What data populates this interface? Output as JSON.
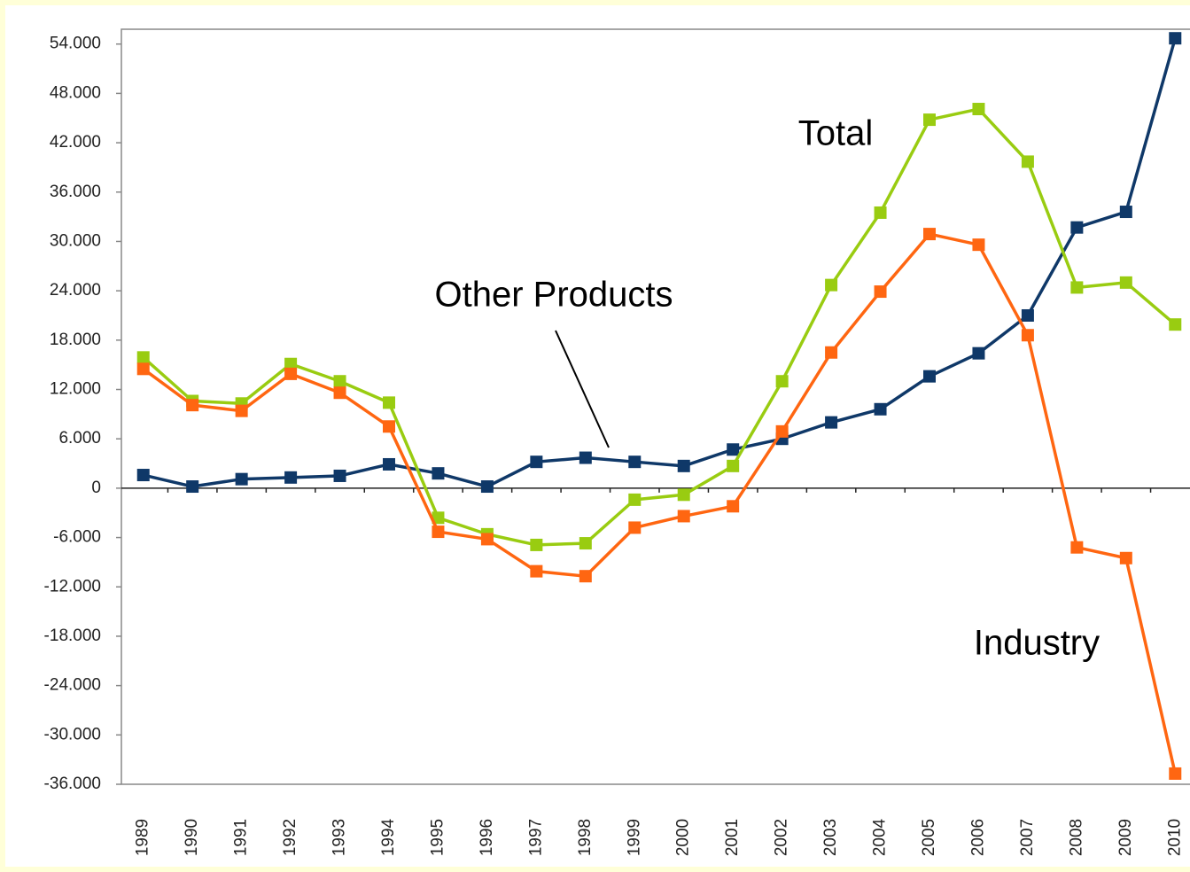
{
  "chart_data": {
    "type": "line",
    "categories": [
      "1989",
      "1990",
      "1991",
      "1992",
      "1993",
      "1994",
      "1995",
      "1996",
      "1997",
      "1998",
      "1999",
      "2000",
      "2001",
      "2002",
      "2003",
      "2004",
      "2005",
      "2006",
      "2007",
      "2008",
      "2009",
      "2010"
    ],
    "series": [
      {
        "name": "Other Products",
        "color": "#0f3868",
        "values": [
          1600,
          200,
          1100,
          1300,
          1500,
          2900,
          1800,
          200,
          3200,
          3700,
          3200,
          2700,
          4700,
          6000,
          8000,
          9600,
          13600,
          16400,
          21000,
          31700,
          33600,
          54700
        ]
      },
      {
        "name": "Total",
        "color": "#99cc11",
        "values": [
          15900,
          10600,
          10300,
          15100,
          13000,
          10400,
          -3600,
          -5600,
          -6900,
          -6700,
          -1400,
          -800,
          2700,
          13000,
          24700,
          33500,
          44800,
          46100,
          39700,
          24400,
          25000,
          19900
        ]
      },
      {
        "name": "Industry",
        "color": "#ff6611",
        "values": [
          14500,
          10100,
          9400,
          13900,
          11600,
          7500,
          -5300,
          -6200,
          -10100,
          -10700,
          -4800,
          -3400,
          -2200,
          6900,
          16500,
          23900,
          30900,
          29600,
          18600,
          -7200,
          -8500,
          -34700
        ]
      }
    ],
    "ylim": [
      -36000,
      55800
    ],
    "yticks": [
      {
        "value": -36000,
        "label": "-36.000"
      },
      {
        "value": -30000,
        "label": "-30.000"
      },
      {
        "value": -24000,
        "label": "-24.000"
      },
      {
        "value": -18000,
        "label": "-18.000"
      },
      {
        "value": -12000,
        "label": "-12.000"
      },
      {
        "value": -6000,
        "label": "-6.000"
      },
      0,
      {
        "value": 6000,
        "label": "6.000"
      },
      {
        "value": 12000,
        "label": "12.000"
      },
      {
        "value": 18000,
        "label": "18.000"
      },
      {
        "value": 24000,
        "label": "24.000"
      },
      {
        "value": 30000,
        "label": "30.000"
      },
      {
        "value": 36000,
        "label": "36.000"
      },
      {
        "value": 42000,
        "label": "42.000"
      },
      {
        "value": 48000,
        "label": "48.000"
      },
      {
        "value": 54000,
        "label": "54.000"
      }
    ],
    "grid": false
  }
}
